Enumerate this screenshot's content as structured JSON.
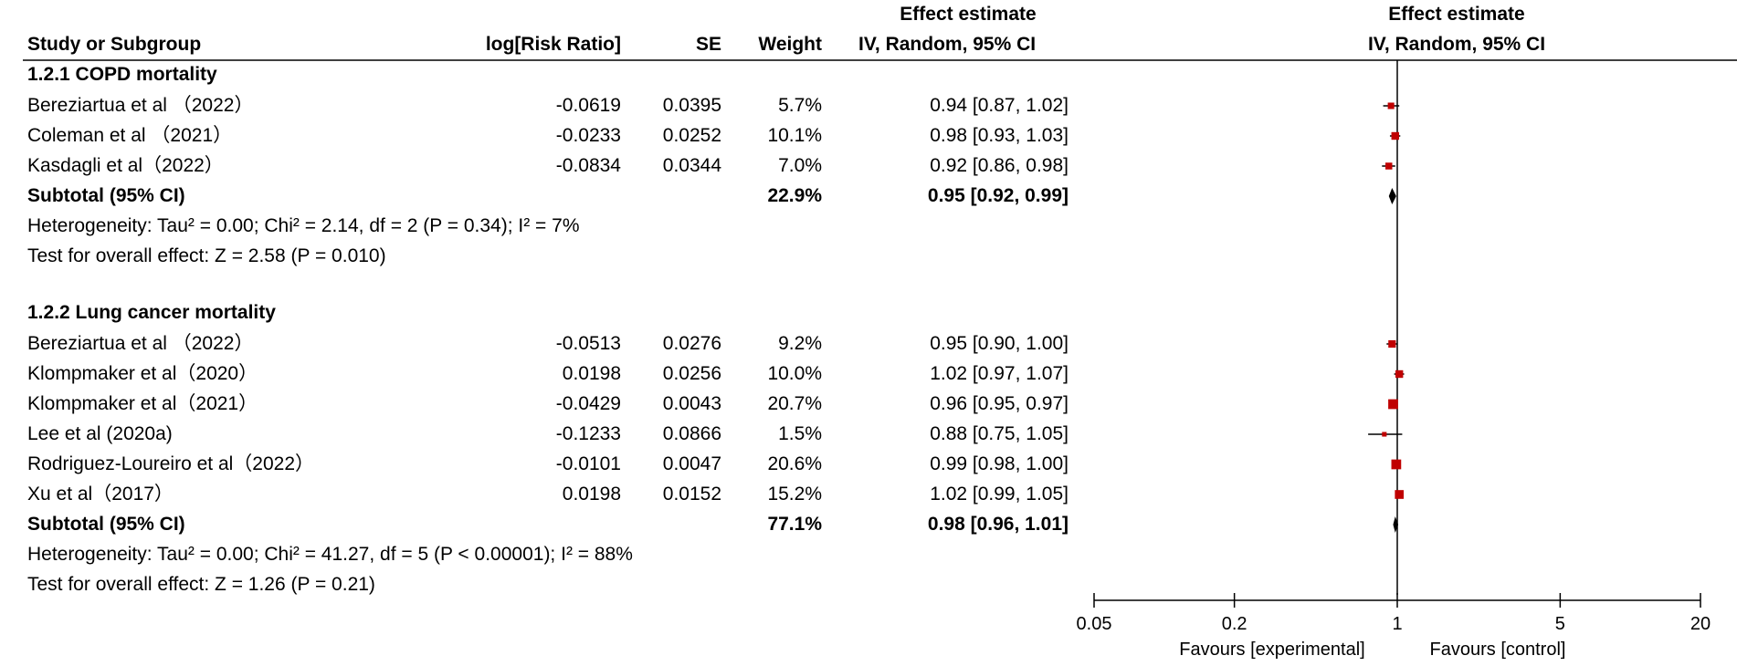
{
  "header": {
    "study": "Study or Subgroup",
    "logrr": "log[Risk Ratio]",
    "se": "SE",
    "weight": "Weight",
    "effect_top": "Effect estimate",
    "effect_bottom": "IV, Random, 95% CI",
    "plot_top": "Effect estimate",
    "plot_bottom": "IV, Random, 95% CI"
  },
  "groups": [
    {
      "title": "1.2.1 COPD mortality",
      "rows": [
        {
          "study": "Bereziartua et al （2022）",
          "logrr": "-0.0619",
          "se": "0.0395",
          "weight": "5.7%",
          "ci": "0.94 [0.87, 1.02]"
        },
        {
          "study": "Coleman et al （2021）",
          "logrr": "-0.0233",
          "se": "0.0252",
          "weight": "10.1%",
          "ci": "0.98 [0.93, 1.03]"
        },
        {
          "study": "Kasdagli et al（2022）",
          "logrr": "-0.0834",
          "se": "0.0344",
          "weight": "7.0%",
          "ci": "0.92 [0.86, 0.98]"
        }
      ],
      "subtotal": {
        "label": "Subtotal (95% CI)",
        "weight": "22.9%",
        "ci": "0.95 [0.92, 0.99]"
      },
      "heterogeneity": "Heterogeneity: Tau² = 0.00; Chi² = 2.14, df = 2 (P = 0.34); I² = 7%",
      "overall": "Test for overall effect: Z = 2.58 (P = 0.010)"
    },
    {
      "title": "1.2.2 Lung cancer mortality",
      "rows": [
        {
          "study": "Bereziartua et al （2022）",
          "logrr": "-0.0513",
          "se": "0.0276",
          "weight": "9.2%",
          "ci": "0.95 [0.90, 1.00]"
        },
        {
          "study": "Klompmaker et al（2020）",
          "logrr": "0.0198",
          "se": "0.0256",
          "weight": "10.0%",
          "ci": "1.02 [0.97, 1.07]"
        },
        {
          "study": "Klompmaker et al（2021）",
          "logrr": "-0.0429",
          "se": "0.0043",
          "weight": "20.7%",
          "ci": "0.96 [0.95, 0.97]"
        },
        {
          "study": "Lee et al (2020a)",
          "logrr": "-0.1233",
          "se": "0.0866",
          "weight": "1.5%",
          "ci": "0.88 [0.75, 1.05]"
        },
        {
          "study": "Rodriguez-Loureiro et al（2022）",
          "logrr": "-0.0101",
          "se": "0.0047",
          "weight": "20.6%",
          "ci": "0.99 [0.98, 1.00]"
        },
        {
          "study": "Xu et al（2017）",
          "logrr": "0.0198",
          "se": "0.0152",
          "weight": "15.2%",
          "ci": "1.02 [0.99, 1.05]"
        }
      ],
      "subtotal": {
        "label": "Subtotal (95% CI)",
        "weight": "77.1%",
        "ci": "0.98 [0.96, 1.01]"
      },
      "heterogeneity": "Heterogeneity: Tau² = 0.00; Chi² = 41.27, df = 5 (P < 0.00001); I² = 88%",
      "overall": "Test for overall effect: Z = 1.26 (P = 0.21)"
    }
  ],
  "chart_data": {
    "type": "forest",
    "x_scale": "log",
    "xlim": [
      0.05,
      20
    ],
    "ticks": [
      0.05,
      0.2,
      1,
      5,
      20
    ],
    "tick_labels": [
      "0.05",
      "0.2",
      "1",
      "5",
      "20"
    ],
    "null_value": 1,
    "favours_left": "Favours [experimental]",
    "favours_right": "Favours [control]",
    "study_color": "#c00000",
    "diamond_color": "#000000",
    "studies": [
      {
        "group": 0,
        "est": 0.94,
        "lo": 0.87,
        "hi": 1.02,
        "weight": 5.7
      },
      {
        "group": 0,
        "est": 0.98,
        "lo": 0.93,
        "hi": 1.03,
        "weight": 10.1
      },
      {
        "group": 0,
        "est": 0.92,
        "lo": 0.86,
        "hi": 0.98,
        "weight": 7.0
      },
      {
        "group": 1,
        "est": 0.95,
        "lo": 0.9,
        "hi": 1.0,
        "weight": 9.2
      },
      {
        "group": 1,
        "est": 1.02,
        "lo": 0.97,
        "hi": 1.07,
        "weight": 10.0
      },
      {
        "group": 1,
        "est": 0.96,
        "lo": 0.95,
        "hi": 0.97,
        "weight": 20.7
      },
      {
        "group": 1,
        "est": 0.88,
        "lo": 0.75,
        "hi": 1.05,
        "weight": 1.5
      },
      {
        "group": 1,
        "est": 0.99,
        "lo": 0.98,
        "hi": 1.0,
        "weight": 20.6
      },
      {
        "group": 1,
        "est": 1.02,
        "lo": 0.99,
        "hi": 1.05,
        "weight": 15.2
      }
    ],
    "subtotals": [
      {
        "group": 0,
        "est": 0.95,
        "lo": 0.92,
        "hi": 0.99
      },
      {
        "group": 1,
        "est": 0.98,
        "lo": 0.96,
        "hi": 1.01
      }
    ]
  }
}
